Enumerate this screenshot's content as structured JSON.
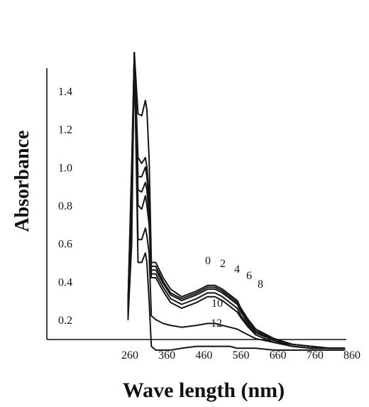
{
  "chart_data": {
    "type": "line",
    "title": "",
    "xlabel": "Wave length (nm)",
    "ylabel": "Absorbance",
    "xlim": [
      240,
      860
    ],
    "ylim": [
      0,
      1.4
    ],
    "xticks": [
      260,
      360,
      460,
      560,
      660,
      760,
      860
    ],
    "xtick_labels": [
      "260",
      "360",
      "460",
      "560",
      "660",
      "760",
      "860"
    ],
    "yticks": [
      0.2,
      0.4,
      0.6,
      0.8,
      1.0,
      1.2,
      1.4
    ],
    "ytick_labels": [
      "0.2",
      "0.4",
      "0.6",
      "0.8",
      "1.0",
      "1.2",
      "1.4"
    ],
    "grid": false,
    "series": [
      {
        "name": "0",
        "x": [
          255,
          265,
          272,
          282,
          292,
          302,
          306,
          312,
          318,
          330,
          350,
          370,
          400,
          440,
          470,
          490,
          510,
          530,
          550,
          560,
          580,
          600,
          650,
          700,
          750,
          800,
          840
        ],
        "y": [
          0.29,
          1.02,
          1.6,
          1.28,
          1.27,
          1.35,
          1.3,
          1.05,
          0.5,
          0.5,
          0.42,
          0.36,
          0.32,
          0.35,
          0.38,
          0.38,
          0.36,
          0.33,
          0.3,
          0.26,
          0.2,
          0.15,
          0.1,
          0.07,
          0.06,
          0.05,
          0.05
        ]
      },
      {
        "name": "2",
        "x": [
          255,
          265,
          272,
          282,
          292,
          302,
          306,
          312,
          318,
          330,
          350,
          370,
          400,
          440,
          470,
          490,
          510,
          530,
          550,
          560,
          580,
          600,
          650,
          700,
          750,
          800,
          840
        ],
        "y": [
          0.28,
          0.98,
          1.6,
          1.05,
          1.02,
          1.05,
          1.0,
          0.85,
          0.48,
          0.48,
          0.4,
          0.34,
          0.31,
          0.34,
          0.37,
          0.37,
          0.35,
          0.32,
          0.29,
          0.25,
          0.19,
          0.14,
          0.1,
          0.07,
          0.06,
          0.05,
          0.05
        ]
      },
      {
        "name": "4",
        "x": [
          255,
          265,
          272,
          282,
          292,
          302,
          306,
          312,
          318,
          330,
          350,
          370,
          400,
          440,
          470,
          490,
          510,
          530,
          550,
          560,
          580,
          600,
          650,
          700,
          750,
          800,
          840
        ],
        "y": [
          0.27,
          0.95,
          1.6,
          0.95,
          0.95,
          1.0,
          0.95,
          0.8,
          0.46,
          0.46,
          0.39,
          0.33,
          0.3,
          0.33,
          0.36,
          0.36,
          0.34,
          0.31,
          0.28,
          0.24,
          0.18,
          0.14,
          0.09,
          0.07,
          0.06,
          0.05,
          0.05
        ]
      },
      {
        "name": "6",
        "x": [
          255,
          265,
          272,
          282,
          292,
          302,
          306,
          312,
          318,
          330,
          350,
          370,
          400,
          440,
          470,
          490,
          510,
          530,
          550,
          560,
          580,
          600,
          650,
          700,
          750,
          800,
          840
        ],
        "y": [
          0.26,
          0.9,
          1.6,
          0.88,
          0.87,
          0.92,
          0.88,
          0.75,
          0.44,
          0.44,
          0.37,
          0.31,
          0.28,
          0.31,
          0.34,
          0.34,
          0.32,
          0.29,
          0.26,
          0.22,
          0.17,
          0.13,
          0.09,
          0.06,
          0.05,
          0.05,
          0.05
        ]
      },
      {
        "name": "8",
        "x": [
          255,
          265,
          272,
          282,
          292,
          302,
          306,
          312,
          318,
          330,
          350,
          370,
          400,
          440,
          470,
          490,
          510,
          530,
          550,
          560,
          580,
          600,
          650,
          700,
          750,
          800,
          840
        ],
        "y": [
          0.24,
          0.85,
          1.6,
          0.8,
          0.78,
          0.85,
          0.8,
          0.7,
          0.42,
          0.42,
          0.35,
          0.29,
          0.26,
          0.29,
          0.32,
          0.32,
          0.3,
          0.27,
          0.24,
          0.21,
          0.16,
          0.12,
          0.08,
          0.06,
          0.05,
          0.05,
          0.05
        ]
      },
      {
        "name": "10",
        "x": [
          255,
          265,
          272,
          282,
          292,
          302,
          306,
          312,
          318,
          330,
          350,
          370,
          400,
          440,
          470,
          490,
          510,
          530,
          550,
          560,
          580,
          600,
          650,
          700,
          750,
          800,
          840
        ],
        "y": [
          0.22,
          0.7,
          1.6,
          0.62,
          0.62,
          0.68,
          0.64,
          0.55,
          0.22,
          0.2,
          0.18,
          0.17,
          0.16,
          0.17,
          0.18,
          0.18,
          0.17,
          0.16,
          0.15,
          0.14,
          0.12,
          0.1,
          0.08,
          0.06,
          0.05,
          0.05,
          0.05
        ]
      },
      {
        "name": "12",
        "x": [
          255,
          265,
          272,
          282,
          292,
          302,
          306,
          312,
          318,
          330,
          350,
          370,
          400,
          440,
          470,
          490,
          510,
          530,
          550,
          560,
          580,
          600,
          650,
          700,
          750,
          800,
          840
        ],
        "y": [
          0.2,
          0.6,
          1.6,
          0.5,
          0.5,
          0.55,
          0.5,
          0.3,
          0.06,
          0.04,
          0.04,
          0.04,
          0.05,
          0.06,
          0.06,
          0.06,
          0.06,
          0.06,
          0.05,
          0.05,
          0.05,
          0.05,
          0.04,
          0.04,
          0.04,
          0.04,
          0.04
        ]
      }
    ]
  }
}
